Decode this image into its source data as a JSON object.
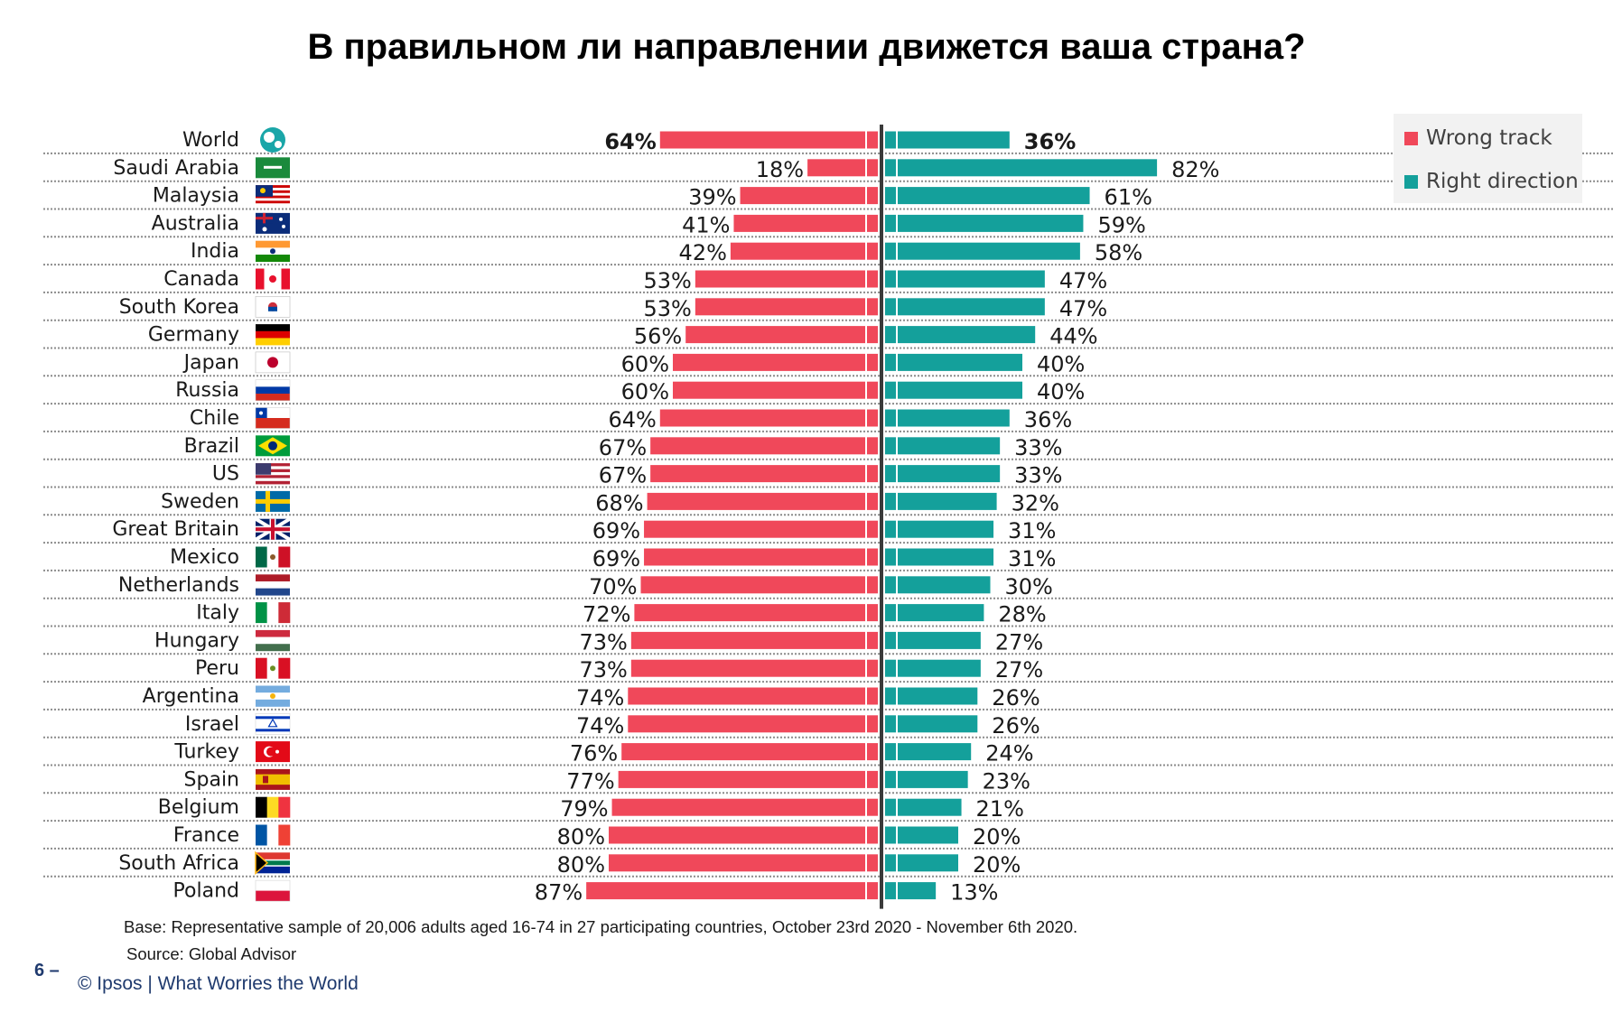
{
  "title": "В правильном ли направлении движется ваша страна?",
  "legend": [
    {
      "label": "Wrong track",
      "color": "#f0485a"
    },
    {
      "label": "Right direction",
      "color": "#14a09b"
    }
  ],
  "footnotes": {
    "base": "Base: Representative sample of 20,006 adults aged 16-74 in 27 participating countries, October 23rd 2020 - November 6th 2020.",
    "source": "Source: Global Advisor"
  },
  "page_number": "6 –",
  "brand": "© Ipsos | What Worries the World",
  "chart_data": {
    "type": "bar",
    "orientation": "diverging-horizontal",
    "categories": [
      "World",
      "Saudi Arabia",
      "Malaysia",
      "Australia",
      "India",
      "Canada",
      "South Korea",
      "Germany",
      "Japan",
      "Russia",
      "Chile",
      "Brazil",
      "US",
      "Sweden",
      "Great Britain",
      "Mexico",
      "Netherlands",
      "Italy",
      "Hungary",
      "Peru",
      "Argentina",
      "Israel",
      "Turkey",
      "Spain",
      "Belgium",
      "France",
      "South Africa",
      "Poland"
    ],
    "series": [
      {
        "name": "Wrong track",
        "color": "#f0485a",
        "values": [
          64,
          18,
          39,
          41,
          42,
          53,
          53,
          56,
          60,
          60,
          64,
          67,
          67,
          68,
          69,
          69,
          70,
          72,
          73,
          73,
          74,
          74,
          76,
          77,
          79,
          80,
          80,
          87
        ]
      },
      {
        "name": "Right direction",
        "color": "#14a09b",
        "values": [
          36,
          82,
          61,
          59,
          58,
          47,
          47,
          44,
          40,
          40,
          36,
          33,
          33,
          32,
          31,
          31,
          30,
          28,
          27,
          27,
          26,
          26,
          24,
          23,
          21,
          20,
          20,
          13
        ]
      }
    ],
    "value_suffix": "%",
    "bold_rows": [
      "World"
    ],
    "flag_icons": [
      "globe-icon",
      "saudi-arabia-flag-icon",
      "malaysia-flag-icon",
      "australia-flag-icon",
      "india-flag-icon",
      "canada-flag-icon",
      "south-korea-flag-icon",
      "germany-flag-icon",
      "japan-flag-icon",
      "russia-flag-icon",
      "chile-flag-icon",
      "brazil-flag-icon",
      "us-flag-icon",
      "sweden-flag-icon",
      "great-britain-flag-icon",
      "mexico-flag-icon",
      "netherlands-flag-icon",
      "italy-flag-icon",
      "hungary-flag-icon",
      "peru-flag-icon",
      "argentina-flag-icon",
      "israel-flag-icon",
      "turkey-flag-icon",
      "spain-flag-icon",
      "belgium-flag-icon",
      "france-flag-icon",
      "south-africa-flag-icon",
      "poland-flag-icon"
    ],
    "legend_position": "top-right"
  }
}
